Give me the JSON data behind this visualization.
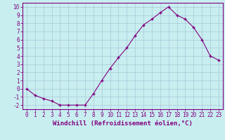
{
  "x": [
    0,
    1,
    2,
    3,
    4,
    5,
    6,
    7,
    8,
    9,
    10,
    11,
    12,
    13,
    14,
    15,
    16,
    17,
    18,
    19,
    20,
    21,
    22,
    23
  ],
  "y": [
    0,
    -0.8,
    -1.2,
    -1.5,
    -2.0,
    -2.0,
    -2.0,
    -2.0,
    -0.6,
    1.0,
    2.5,
    3.8,
    5.0,
    6.5,
    7.8,
    8.5,
    9.3,
    10.0,
    9.0,
    8.5,
    7.5,
    6.0,
    4.0,
    3.5
  ],
  "line_color": "#800080",
  "marker": "+",
  "marker_color": "#800080",
  "bg_color": "#c8eef0",
  "grid_color": "#aac8d8",
  "xlabel": "Windchill (Refroidissement éolien,°C)",
  "ylabel": "",
  "title": "",
  "xlim_min": -0.5,
  "xlim_max": 23.5,
  "ylim_min": -2.5,
  "ylim_max": 10.5,
  "xtick_labels": [
    "0",
    "1",
    "2",
    "3",
    "4",
    "5",
    "6",
    "7",
    "8",
    "9",
    "10",
    "11",
    "12",
    "13",
    "14",
    "15",
    "16",
    "17",
    "18",
    "19",
    "20",
    "21",
    "22",
    "23"
  ],
  "ytick_values": [
    -2,
    -1,
    0,
    1,
    2,
    3,
    4,
    5,
    6,
    7,
    8,
    9,
    10
  ],
  "xlabel_color": "#800080",
  "tick_color": "#800080",
  "spine_color": "#800080",
  "tick_fontsize": 5.5,
  "xlabel_fontsize": 6.5
}
